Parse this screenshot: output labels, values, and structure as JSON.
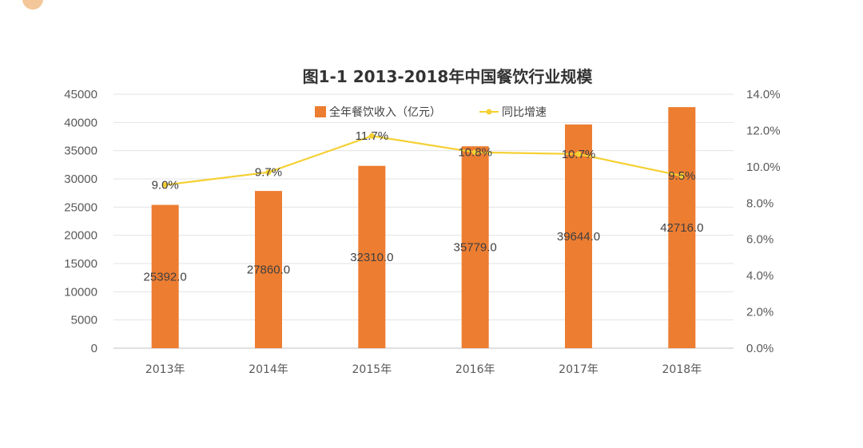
{
  "chart_data": {
    "type": "bar+line",
    "title": "图1-1  2013-2018年中国餐饮行业规模",
    "categories": [
      "2013年",
      "2014年",
      "2015年",
      "2016年",
      "2017年",
      "2018年"
    ],
    "series": [
      {
        "name": "全年餐饮收入（亿元）",
        "kind": "bar",
        "axis": "left",
        "color": "#ed7d31",
        "values": [
          25392.0,
          27860.0,
          32310.0,
          35779.0,
          39644.0,
          42716.0
        ],
        "labels": [
          "25392.0",
          "27860.0",
          "32310.0",
          "35779.0",
          "39644.0",
          "42716.0"
        ]
      },
      {
        "name": "同比增速",
        "kind": "line",
        "axis": "right",
        "color": "#f5d033",
        "values": [
          9.0,
          9.7,
          11.7,
          10.8,
          10.7,
          9.5
        ],
        "labels": [
          "9.0%",
          "9.7%",
          "11.7%",
          "10.8%",
          "10.7%",
          "9.5%"
        ]
      }
    ],
    "y_left": {
      "range": [
        0,
        45000
      ],
      "ticks": [
        "0",
        "5000",
        "10000",
        "15000",
        "20000",
        "25000",
        "30000",
        "35000",
        "40000",
        "45000"
      ]
    },
    "y_right": {
      "range": [
        0,
        14
      ],
      "ticks": [
        "0.0%",
        "2.0%",
        "4.0%",
        "6.0%",
        "8.0%",
        "10.0%",
        "12.0%",
        "14.0%"
      ]
    },
    "grid": true,
    "legend_position": "top"
  }
}
